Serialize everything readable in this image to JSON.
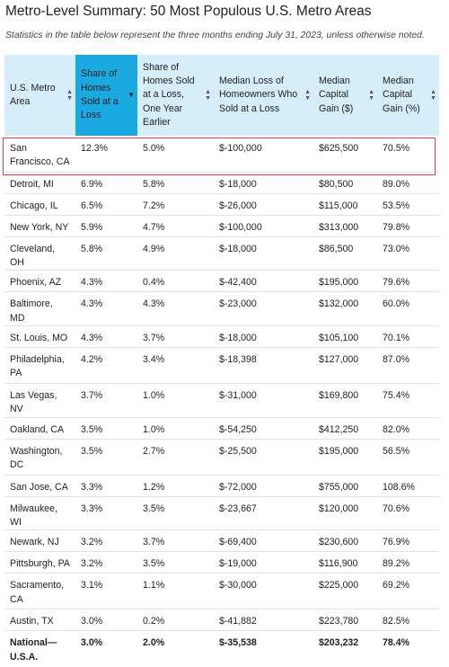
{
  "title": "Metro-Level Summary: 50 Most Populous U.S. Metro Areas",
  "subtitle": "Statistics in the table below represent the three months ending July 31, 2023, unless otherwise noted.",
  "columns": [
    {
      "label": "U.S. Metro Area",
      "sort": "both"
    },
    {
      "label": "Share of Homes Sold at a Loss",
      "sort": "desc"
    },
    {
      "label": "Share of Homes Sold at a Loss, One Year Earlier",
      "sort": "both"
    },
    {
      "label": "Median Loss of Homeowners Who Sold at a Loss",
      "sort": "both"
    },
    {
      "label": "Median Capital Gain ($)",
      "sort": "both"
    },
    {
      "label": "Median Capital Gain (%)",
      "sort": "both"
    }
  ],
  "rows": [
    [
      "San Francisco, CA",
      "12.3%",
      "5.0%",
      "$-100,000",
      "$625,500",
      "70.5%"
    ],
    [
      "Detroit, MI",
      "6.9%",
      "5.8%",
      "$-18,000",
      "$80,500",
      "89.0%"
    ],
    [
      "Chicago, IL",
      "6.5%",
      "7.2%",
      "$-26,000",
      "$115,000",
      "53.5%"
    ],
    [
      "New York, NY",
      "5.9%",
      "4.7%",
      "$-100,000",
      "$313,000",
      "79.8%"
    ],
    [
      "Cleveland, OH",
      "5.8%",
      "4.9%",
      "$-18,000",
      "$86,500",
      "73.0%"
    ],
    [
      "Phoenix, AZ",
      "4.3%",
      "0.4%",
      "$-42,400",
      "$195,000",
      "79.6%"
    ],
    [
      "Baltimore, MD",
      "4.3%",
      "4.3%",
      "$-23,000",
      "$132,000",
      "60.0%"
    ],
    [
      "St. Louis, MO",
      "4.3%",
      "3.7%",
      "$-18,000",
      "$105,100",
      "70.1%"
    ],
    [
      "Philadelphia, PA",
      "4.2%",
      "3.4%",
      "$-18,398",
      "$127,000",
      "87.0%"
    ],
    [
      "Las Vegas, NV",
      "3.7%",
      "1.0%",
      "$-31,000",
      "$169,800",
      "75.4%"
    ],
    [
      "Oakland, CA",
      "3.5%",
      "1.0%",
      "$-54,250",
      "$412,250",
      "82.0%"
    ],
    [
      "Washington, DC",
      "3.5%",
      "2.7%",
      "$-25,500",
      "$195,000",
      "56.5%"
    ],
    [
      "San Jose, CA",
      "3.3%",
      "1.2%",
      "$-72,000",
      "$755,000",
      "108.6%"
    ],
    [
      "Milwaukee, WI",
      "3.3%",
      "3.5%",
      "$-23,667",
      "$120,000",
      "70.6%"
    ],
    [
      "Newark, NJ",
      "3.2%",
      "3.7%",
      "$-69,400",
      "$230,600",
      "76.9%"
    ],
    [
      "Pittsburgh, PA",
      "3.2%",
      "3.5%",
      "$-19,000",
      "$116,900",
      "89.2%"
    ],
    [
      "Sacramento, CA",
      "3.1%",
      "1.1%",
      "$-30,000",
      "$225,000",
      "69.2%"
    ],
    [
      "Austin, TX",
      "3.0%",
      "0.2%",
      "$-41,882",
      "$223,780",
      "82.5%"
    ]
  ],
  "total_row": [
    "National—U.S.A.",
    "3.0%",
    "2.0%",
    "$-35,538",
    "$203,232",
    "78.4%"
  ],
  "colors": {
    "header_bg": "#d6eef9",
    "sorted_header_bg": "#1aa9e0",
    "highlight_border": "#d9433b"
  },
  "highlighted_row": "San Francisco, CA"
}
